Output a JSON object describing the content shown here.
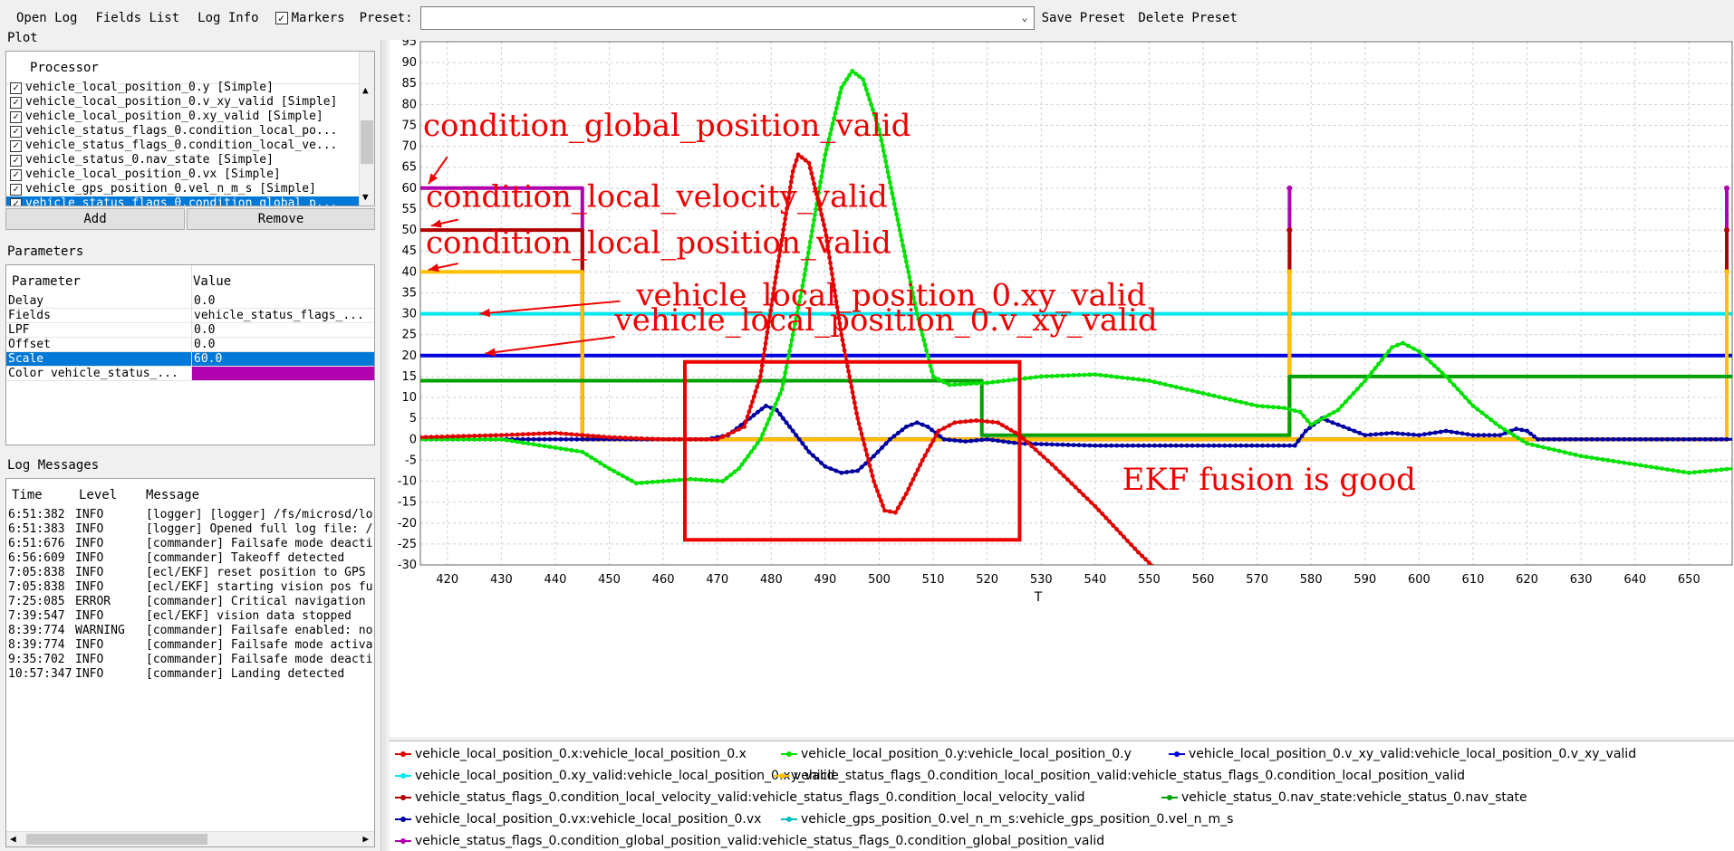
{
  "toolbar": {
    "open_log": "Open Log",
    "fields_list": "Fields List",
    "log_info": "Log Info",
    "markers_label": "Markers",
    "markers_checked": true,
    "preset_label": "Preset:",
    "preset_value": "",
    "save_preset": "Save Preset",
    "delete_preset": "Delete Preset"
  },
  "plot_panel": {
    "title": "Plot",
    "column_header": "Processor",
    "items": [
      {
        "label": "vehicle_local_position_0.y [Simple]",
        "checked": true,
        "selected": false
      },
      {
        "label": "vehicle_local_position_0.v_xy_valid [Simple]",
        "checked": true,
        "selected": false
      },
      {
        "label": "vehicle_local_position_0.xy_valid [Simple]",
        "checked": true,
        "selected": false
      },
      {
        "label": "vehicle_status_flags_0.condition_local_po...",
        "checked": true,
        "selected": false
      },
      {
        "label": "vehicle_status_flags_0.condition_local_ve...",
        "checked": true,
        "selected": false
      },
      {
        "label": "vehicle_status_0.nav_state [Simple]",
        "checked": true,
        "selected": false
      },
      {
        "label": "vehicle_local_position_0.vx [Simple]",
        "checked": true,
        "selected": false
      },
      {
        "label": "vehicle_gps_position_0.vel_n_m_s [Simple]",
        "checked": true,
        "selected": false
      },
      {
        "label": "vehicle_status_flags_0.condition_global_p...",
        "checked": true,
        "selected": true
      }
    ],
    "add_button": "Add",
    "remove_button": "Remove"
  },
  "parameters_panel": {
    "title": "Parameters",
    "col_param": "Parameter",
    "col_value": "Value",
    "rows": [
      {
        "param": "Delay",
        "value": "0.0",
        "selected": false
      },
      {
        "param": "Fields",
        "value": "vehicle_status_flags_...",
        "selected": false
      },
      {
        "param": "LPF",
        "value": "0.0",
        "selected": false
      },
      {
        "param": "Offset",
        "value": "0.0",
        "selected": false
      },
      {
        "param": "Scale",
        "value": "60.0",
        "selected": true
      },
      {
        "param": "Color vehicle_status_...",
        "value": "",
        "selected": false,
        "color": "#b000b0"
      }
    ]
  },
  "log_panel": {
    "title": "Log Messages",
    "col_time": "Time",
    "col_level": "Level",
    "col_message": "Message",
    "rows": [
      {
        "time": "6:51:382",
        "level": "INFO",
        "message": "[logger] [logger] /fs/microsd/lo"
      },
      {
        "time": "6:51:383",
        "level": "INFO",
        "message": "[logger] Opened full log file: /"
      },
      {
        "time": "6:51:676",
        "level": "INFO",
        "message": "[commander] Failsafe mode deacti"
      },
      {
        "time": "6:56:609",
        "level": "INFO",
        "message": "[commander] Takeoff detected"
      },
      {
        "time": "7:05:838",
        "level": "INFO",
        "message": "[ecl/EKF] reset position to GPS"
      },
      {
        "time": "7:05:838",
        "level": "INFO",
        "message": "[ecl/EKF] starting vision pos fu"
      },
      {
        "time": "7:25:085",
        "level": "ERROR",
        "message": "[commander] Critical navigation"
      },
      {
        "time": "7:39:547",
        "level": "INFO",
        "message": "[ecl/EKF] vision data stopped"
      },
      {
        "time": "8:39:774",
        "level": "WARNING",
        "message": "[commander] Failsafe enabled: no"
      },
      {
        "time": "8:39:774",
        "level": "INFO",
        "message": "[commander] Failsafe mode activa"
      },
      {
        "time": "9:35:702",
        "level": "INFO",
        "message": "[commander] Failsafe mode deacti"
      },
      {
        "time": "10:57:347",
        "level": "INFO",
        "message": "[commander] Landing detected"
      }
    ]
  },
  "chart_data": {
    "type": "line",
    "xlabel": "T",
    "ylabel": "",
    "xlim": [
      415,
      658
    ],
    "ylim": [
      -30,
      95
    ],
    "xticks": [
      420,
      430,
      440,
      450,
      460,
      470,
      480,
      490,
      500,
      510,
      520,
      530,
      540,
      550,
      560,
      570,
      580,
      590,
      600,
      610,
      620,
      630,
      640,
      650
    ],
    "yticks": [
      95,
      90,
      85,
      80,
      75,
      70,
      65,
      60,
      55,
      50,
      45,
      40,
      35,
      30,
      25,
      20,
      15,
      10,
      5,
      0,
      -5,
      -10,
      -15,
      -20,
      -25,
      -30
    ],
    "grid": true,
    "legend_position": "bottom",
    "series": [
      {
        "name": "vehicle_local_position_0.x:vehicle_local_position_0.x",
        "color": "#e00000",
        "markers": true,
        "points": [
          [
            415,
            0.5
          ],
          [
            430,
            1
          ],
          [
            440,
            1.5
          ],
          [
            450,
            0.5
          ],
          [
            460,
            0
          ],
          [
            470,
            0
          ],
          [
            475,
            3
          ],
          [
            478,
            15
          ],
          [
            481,
            40
          ],
          [
            484,
            64
          ],
          [
            485,
            68
          ],
          [
            487,
            66
          ],
          [
            490,
            50
          ],
          [
            493,
            25
          ],
          [
            496,
            5
          ],
          [
            499,
            -10
          ],
          [
            501,
            -17
          ],
          [
            503,
            -17.5
          ],
          [
            505,
            -13
          ],
          [
            508,
            -5
          ],
          [
            511,
            2
          ],
          [
            514,
            4
          ],
          [
            518,
            4.5
          ],
          [
            522,
            4
          ],
          [
            526,
            1
          ],
          [
            532,
            -6
          ],
          [
            540,
            -16
          ],
          [
            548,
            -27
          ],
          [
            552,
            -32
          ]
        ]
      },
      {
        "name": "vehicle_local_position_0.y:vehicle_local_position_0.y",
        "color": "#00e000",
        "markers": true,
        "points": [
          [
            415,
            0
          ],
          [
            430,
            0
          ],
          [
            440,
            -2
          ],
          [
            445,
            -3
          ],
          [
            450,
            -7
          ],
          [
            455,
            -10.5
          ],
          [
            460,
            -10
          ],
          [
            465,
            -9.5
          ],
          [
            471,
            -10
          ],
          [
            474,
            -7
          ],
          [
            478,
            0
          ],
          [
            482,
            12
          ],
          [
            486,
            38
          ],
          [
            490,
            68
          ],
          [
            493,
            84
          ],
          [
            495,
            88
          ],
          [
            497,
            86
          ],
          [
            500,
            74
          ],
          [
            503,
            55
          ],
          [
            507,
            30
          ],
          [
            510,
            15
          ],
          [
            513,
            13
          ],
          [
            520,
            13.5
          ],
          [
            530,
            15
          ],
          [
            540,
            15.5
          ],
          [
            550,
            14
          ],
          [
            560,
            11
          ],
          [
            570,
            8
          ],
          [
            575,
            7.5
          ],
          [
            578,
            6.5
          ],
          [
            580,
            3.5
          ],
          [
            585,
            7
          ],
          [
            590,
            14
          ],
          [
            595,
            22
          ],
          [
            597,
            23
          ],
          [
            600,
            21
          ],
          [
            605,
            15
          ],
          [
            610,
            8
          ],
          [
            615,
            3
          ],
          [
            620,
            -1
          ],
          [
            625,
            -2.5
          ],
          [
            630,
            -4
          ],
          [
            640,
            -6
          ],
          [
            650,
            -8
          ],
          [
            658,
            -7
          ]
        ]
      },
      {
        "name": "vehicle_local_position_0.v_xy_valid:vehicle_local_position_0.v_xy_valid",
        "color": "#0000e0",
        "markers": false,
        "points": [
          [
            415,
            20
          ],
          [
            658,
            20
          ]
        ]
      },
      {
        "name": "vehicle_local_position_0.xy_valid:vehicle_local_position_0.xy_valid",
        "color": "#00e6f0",
        "markers": false,
        "points": [
          [
            415,
            30
          ],
          [
            658,
            30
          ]
        ]
      },
      {
        "name": "vehicle_status_flags_0.condition_local_position_valid:vehicle_status_flags_0.condition_local_position_valid",
        "color": "#ffc000",
        "markers": false,
        "points": [
          [
            415,
            40
          ],
          [
            445,
            40
          ],
          [
            445,
            0
          ],
          [
            576,
            0
          ],
          [
            576,
            40
          ],
          [
            576,
            0
          ],
          [
            657,
            0
          ],
          [
            657,
            40
          ]
        ]
      },
      {
        "name": "vehicle_status_flags_0.condition_local_velocity_valid:vehicle_status_flags_0.condition_local_velocity_valid",
        "color": "#b00000",
        "markers": false,
        "points": [
          [
            415,
            50
          ],
          [
            445,
            50
          ],
          [
            445,
            0
          ],
          [
            576,
            0
          ],
          [
            576,
            50
          ],
          [
            576,
            0
          ],
          [
            657,
            0
          ],
          [
            657,
            50
          ]
        ]
      },
      {
        "name": "vehicle_status_0.nav_state:vehicle_status_0.nav_state",
        "color": "#00a000",
        "markers": false,
        "points": [
          [
            415,
            14
          ],
          [
            519,
            14
          ],
          [
            519,
            1
          ],
          [
            576,
            1
          ],
          [
            576,
            15
          ],
          [
            658,
            15
          ]
        ]
      },
      {
        "name": "vehicle_local_position_0.vx:vehicle_local_position_0.vx",
        "color": "#0000a0",
        "markers": true,
        "points": [
          [
            415,
            0
          ],
          [
            440,
            0
          ],
          [
            460,
            0
          ],
          [
            468,
            0
          ],
          [
            472,
            1
          ],
          [
            476,
            5
          ],
          [
            479,
            8
          ],
          [
            481,
            7
          ],
          [
            484,
            2
          ],
          [
            487,
            -3
          ],
          [
            490,
            -6.5
          ],
          [
            493,
            -8
          ],
          [
            496,
            -7.5
          ],
          [
            499,
            -4
          ],
          [
            502,
            0
          ],
          [
            505,
            3
          ],
          [
            507,
            4
          ],
          [
            509,
            3
          ],
          [
            512,
            0
          ],
          [
            516,
            -0.5
          ],
          [
            520,
            0
          ],
          [
            526,
            -1
          ],
          [
            540,
            -1.5
          ],
          [
            560,
            -1.5
          ],
          [
            577,
            -1.5
          ],
          [
            579,
            2
          ],
          [
            582,
            5
          ],
          [
            585,
            3.5
          ],
          [
            590,
            1
          ],
          [
            595,
            1.5
          ],
          [
            600,
            1
          ],
          [
            605,
            2
          ],
          [
            610,
            1
          ],
          [
            615,
            1
          ],
          [
            618,
            2.5
          ],
          [
            620,
            2
          ],
          [
            622,
            0
          ],
          [
            630,
            0
          ],
          [
            658,
            0
          ]
        ]
      },
      {
        "name": "vehicle_gps_position_0.vel_n_m_s:vehicle_gps_position_0.vel_n_m_s",
        "color": "#00c0c0",
        "markers": true,
        "points": []
      },
      {
        "name": "vehicle_status_flags_0.condition_global_position_valid:vehicle_status_flags_0.condition_global_position_valid",
        "color": "#b000b0",
        "markers": false,
        "points": [
          [
            415,
            60
          ],
          [
            445,
            60
          ],
          [
            445,
            0
          ],
          [
            576,
            0
          ],
          [
            576,
            60
          ],
          [
            576,
            0
          ],
          [
            657,
            0
          ],
          [
            657,
            60
          ]
        ]
      }
    ],
    "annotations": [
      {
        "text": "condition_global_position_valid",
        "at": [
          415.5,
          72.5
        ]
      },
      {
        "text": "condition_local_velocity_valid",
        "at": [
          416,
          55.5
        ]
      },
      {
        "text": "condition_local_position_valid",
        "at": [
          416,
          44.5
        ]
      },
      {
        "text": "vehicle_local_position_0.xy_valid",
        "at": [
          455,
          32
        ]
      },
      {
        "text": "vehicle_local_position_0.v_xy_valid",
        "at": [
          451,
          26
        ]
      },
      {
        "text": "EKF fusion is good",
        "at": [
          545,
          -12
        ]
      }
    ]
  }
}
